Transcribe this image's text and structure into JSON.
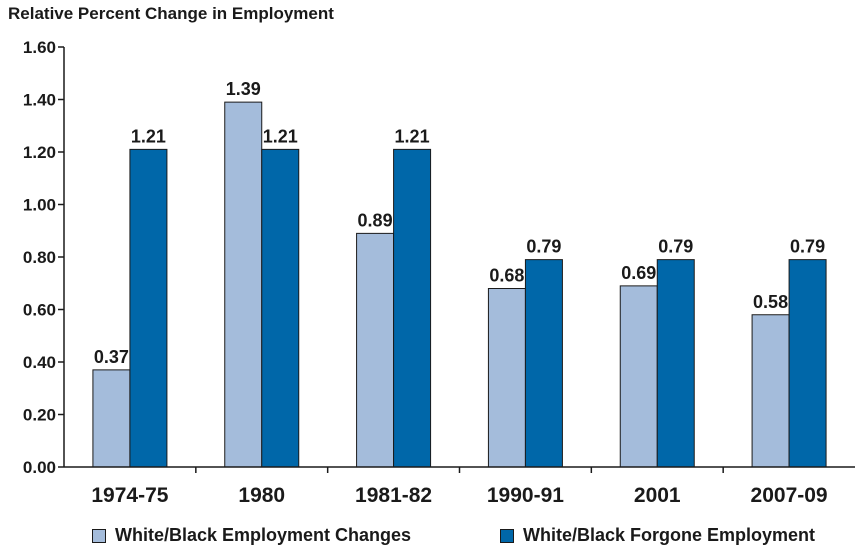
{
  "chart_data": {
    "type": "bar",
    "title": "Relative Percent Change in Employment",
    "categories": [
      "1974-75",
      "1980",
      "1981-82",
      "1990-91",
      "2001",
      "2007-09"
    ],
    "series": [
      {
        "name": "White/Black Employment Changes",
        "values": [
          0.37,
          1.39,
          0.89,
          0.68,
          0.69,
          0.58
        ],
        "labels": [
          "0.37",
          "1.39",
          "0.89",
          "0.68",
          "0.69",
          "0.58"
        ],
        "color": "#a4bcdb"
      },
      {
        "name": "White/Black Forgone Employment",
        "values": [
          1.21,
          1.21,
          1.21,
          0.79,
          0.79,
          0.79
        ],
        "labels": [
          "1.21",
          "1.21",
          "1.21",
          "0.79",
          "0.79",
          "0.79"
        ],
        "color": "#0067a9"
      }
    ],
    "ylim": [
      0,
      1.6
    ],
    "yticks": [
      "0.00",
      "0.20",
      "0.40",
      "0.60",
      "0.80",
      "1.00",
      "1.20",
      "1.40",
      "1.60"
    ],
    "grid": false,
    "legend_position": "bottom"
  }
}
